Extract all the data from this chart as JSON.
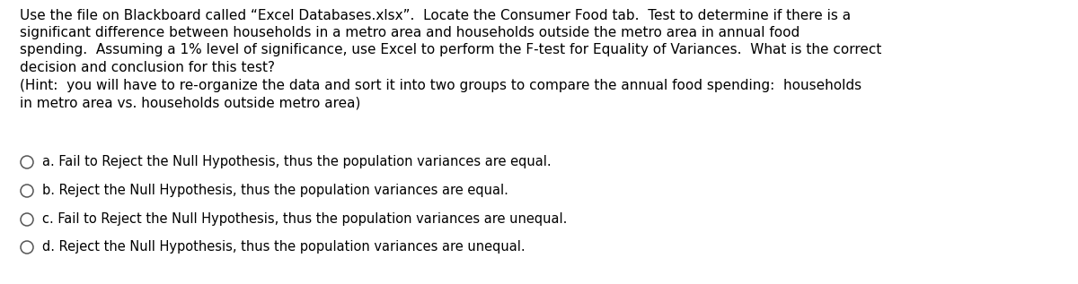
{
  "background_color": "#ffffff",
  "paragraph1": "Use the file on Blackboard called “Excel Databases.xlsx”.  Locate the Consumer Food tab.  Test to determine if there is a\nsignificant difference between households in a metro area and households outside the metro area in annual food\nspending.  Assuming a 1% level of significance, use Excel to perform the F-test for Equality of Variances.  What is the correct\ndecision and conclusion for this test?",
  "paragraph2": "(Hint:  you will have to re-organize the data and sort it into two groups to compare the annual food spending:  households\nin metro area vs. households outside metro area)",
  "options": [
    "a. Fail to Reject the Null Hypothesis, thus the population variances are equal.",
    "b. Reject the Null Hypothesis, thus the population variances are equal.",
    "c. Fail to Reject the Null Hypothesis, thus the population variances are unequal.",
    "d. Reject the Null Hypothesis, thus the population variances are unequal."
  ],
  "text_color": "#000000",
  "font_size_main": 11.0,
  "font_size_options": 10.5,
  "circle_color": "#555555"
}
